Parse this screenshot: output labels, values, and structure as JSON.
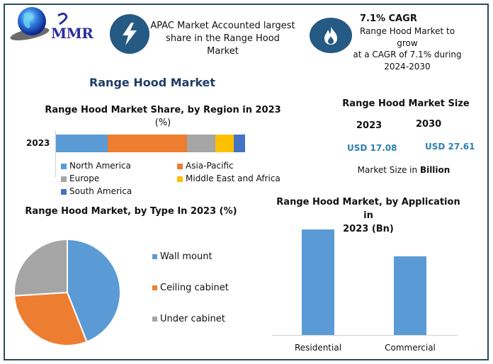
{
  "header": {
    "logo_text": "MMR",
    "info1": {
      "icon": "lightning-icon",
      "text_line1": "APAC Market Accounted largest",
      "text_line2": "share in the Range Hood Market"
    },
    "info2": {
      "icon": "flame-icon",
      "title": "7.1% CAGR",
      "text_line1": "Range Hood Market to grow",
      "text_line2": "at a CAGR of 7.1% during",
      "text_line3": "2024-2030"
    }
  },
  "main_title": "Range Hood Market",
  "market_size": {
    "title": "Range Hood Market Size",
    "year1": "2023",
    "year2": "2030",
    "value1": "USD 17.08",
    "value2": "USD 27.61",
    "note_prefix": "Market Size in ",
    "note_bold": "Billion"
  },
  "colors": {
    "blue": "#5b9bd5",
    "orange": "#ed7d31",
    "gray": "#a5a5a5",
    "yellow": "#ffc000",
    "darkblue": "#4472c4",
    "icon_circle": "#245a84",
    "title_navy": "#1f3c64",
    "usd_blue": "#2e80b0",
    "frame": "#2d4a5a"
  },
  "chart_data": [
    {
      "type": "bar",
      "orientation": "horizontal-stacked",
      "title": "Range Hood Market Share, by Region in 2023 (%)",
      "title_line1": "Range Hood Market Share, by Region in 2023",
      "title_line2": "(%)",
      "categories": [
        "2023"
      ],
      "series": [
        {
          "name": "North America",
          "values": [
            27.3
          ],
          "color": "#5b9bd5"
        },
        {
          "name": "Asia-Pacific",
          "values": [
            42.0
          ],
          "color": "#ed7d31"
        },
        {
          "name": "Europe",
          "values": [
            15.0
          ],
          "color": "#a5a5a5"
        },
        {
          "name": "Middle East and Africa",
          "values": [
            9.7
          ],
          "color": "#ffc000"
        },
        {
          "name": "South America",
          "values": [
            6.0
          ],
          "color": "#4472c4"
        }
      ],
      "xlabel": "",
      "ylabel": "",
      "legend_position": "bottom"
    },
    {
      "type": "pie",
      "title": "Range Hood Market, by Type In 2023 (%)",
      "categories": [
        "Wall mount",
        "Ceiling cabinet",
        "Under cabinet"
      ],
      "values": [
        44,
        30,
        26
      ],
      "colors": [
        "#5b9bd5",
        "#ed7d31",
        "#a5a5a5"
      ],
      "legend_position": "right"
    },
    {
      "type": "bar",
      "title": "Range Hood Market, by Application in 2023 (Bn)",
      "title_line1": "Range Hood Market, by Application in",
      "title_line2": "2023 (Bn)",
      "categories": [
        "Residential",
        "Commercial"
      ],
      "values": [
        9.8,
        7.3
      ],
      "color": "#5b9bd5",
      "xlabel": "",
      "ylabel": "",
      "grid": false
    }
  ]
}
